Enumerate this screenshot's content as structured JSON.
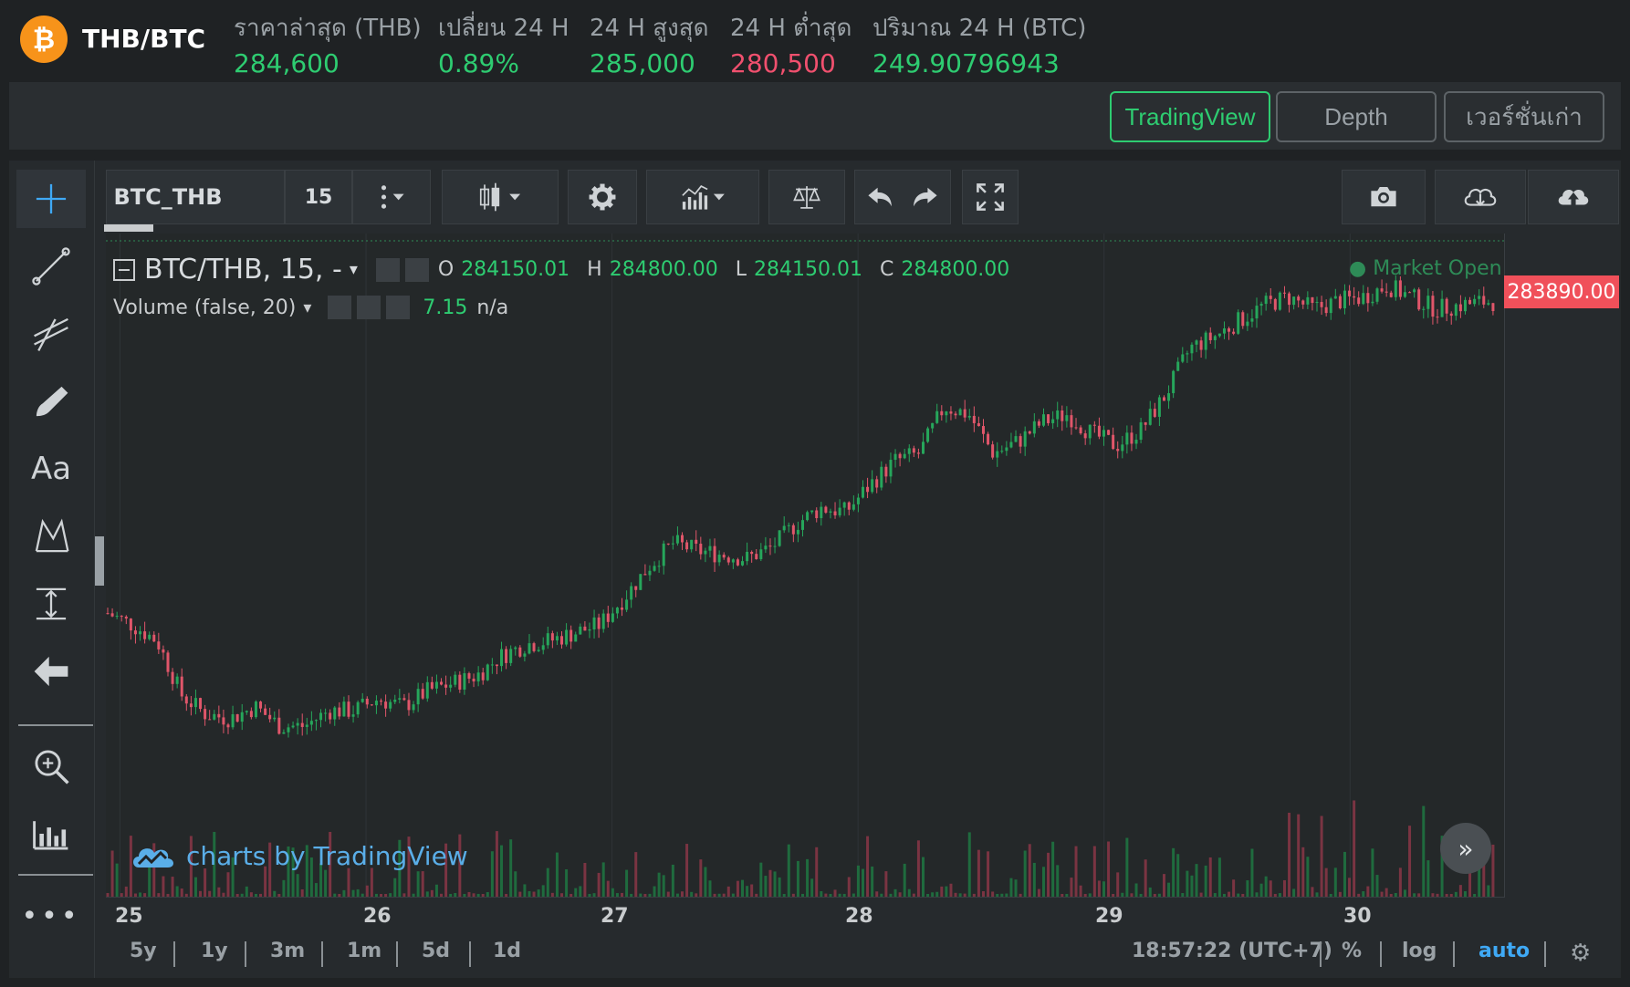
{
  "header": {
    "coin_symbol": "₿",
    "pair": "THB/BTC",
    "stats": [
      {
        "label": "ราคาล่าสุด (THB)",
        "value": "284,600",
        "color": "green"
      },
      {
        "label": "เปลี่ยน 24 H",
        "value": "0.89%",
        "color": "green"
      },
      {
        "label": "24 H สูงสุด",
        "value": "285,000",
        "color": "green"
      },
      {
        "label": "24 H ต่ำสุด",
        "value": "280,500",
        "color": "red"
      },
      {
        "label": "ปริมาณ 24 H (BTC)",
        "value": "249.90796943",
        "color": "green"
      }
    ]
  },
  "view_tabs": [
    "TradingView",
    "Depth",
    "เวอร์ชั่นเก่า"
  ],
  "active_view": "TradingView",
  "toolbar": {
    "symbol": "BTC_THB",
    "interval": "15"
  },
  "left_tools": [
    "crosshair-icon",
    "trend-line-icon",
    "fib-icon",
    "brush-icon",
    "text-icon",
    "pattern-icon",
    "measure-icon",
    "back-arrow-icon",
    "zoom-in-icon",
    "ruler-icon",
    "more-icon"
  ],
  "legend": {
    "title": "BTC/THB, 15, -",
    "o_label": "O",
    "o": "284150.01",
    "h_label": "H",
    "h": "284800.00",
    "l_label": "L",
    "l": "284150.01",
    "c_label": "C",
    "c": "284800.00",
    "volume_label": "Volume (false, 20)",
    "volume_value": "7.15",
    "volume_ma": "n/a"
  },
  "market_status": "● Market Open",
  "last_price": "283890.00",
  "watermark": "charts by TradingView",
  "x_ticks": [
    "25",
    "26",
    "27",
    "28",
    "29",
    "30"
  ],
  "ranges": [
    "5y",
    "1y",
    "3m",
    "1m",
    "5d",
    "1d"
  ],
  "time_display": "18:57:22 (UTC+7)",
  "scale_options": [
    "%",
    "log",
    "auto"
  ],
  "colors": {
    "up": "#26a65b",
    "down": "#e0566a",
    "accent": "#2ecc71",
    "auto": "#3fa9f5"
  },
  "chart_data": {
    "type": "line",
    "x_ticks": [
      "25",
      "26",
      "27",
      "28",
      "29",
      "30"
    ],
    "series": [
      {
        "values": [
          [
            24.95,
            275900
          ],
          [
            25.05,
            275600
          ],
          [
            25.15,
            275200
          ],
          [
            25.25,
            273800
          ],
          [
            25.35,
            273300
          ],
          [
            25.45,
            273200
          ],
          [
            25.55,
            273500
          ],
          [
            25.65,
            273000
          ],
          [
            25.75,
            273000
          ],
          [
            25.85,
            273400
          ],
          [
            25.95,
            273400
          ],
          [
            26.05,
            273700
          ],
          [
            26.15,
            273500
          ],
          [
            26.25,
            273900
          ],
          [
            26.35,
            274100
          ],
          [
            26.45,
            274300
          ],
          [
            26.55,
            274800
          ],
          [
            26.65,
            275100
          ],
          [
            26.75,
            275200
          ],
          [
            26.85,
            275400
          ],
          [
            26.95,
            275600
          ],
          [
            27.05,
            276300
          ],
          [
            27.15,
            277100
          ],
          [
            27.25,
            277700
          ],
          [
            27.35,
            277500
          ],
          [
            27.45,
            277400
          ],
          [
            27.55,
            277300
          ],
          [
            27.65,
            277600
          ],
          [
            27.75,
            278200
          ],
          [
            27.85,
            278600
          ],
          [
            27.95,
            278500
          ],
          [
            28.05,
            279200
          ],
          [
            28.15,
            279800
          ],
          [
            28.25,
            280000
          ],
          [
            28.35,
            281200
          ],
          [
            28.45,
            281000
          ],
          [
            28.55,
            280000
          ],
          [
            28.65,
            280300
          ],
          [
            28.75,
            280800
          ],
          [
            28.85,
            281000
          ],
          [
            28.95,
            280500
          ],
          [
            29.05,
            280200
          ],
          [
            29.15,
            280600
          ],
          [
            29.25,
            281500
          ],
          [
            29.35,
            282700
          ],
          [
            29.45,
            283000
          ],
          [
            29.55,
            283400
          ],
          [
            29.65,
            283800
          ],
          [
            29.75,
            284000
          ],
          [
            29.85,
            283700
          ],
          [
            29.95,
            283900
          ],
          [
            30.05,
            284000
          ],
          [
            30.15,
            284300
          ],
          [
            30.25,
            284000
          ],
          [
            30.35,
            283700
          ],
          [
            30.45,
            283800
          ],
          [
            30.55,
            283890
          ]
        ]
      }
    ]
  }
}
